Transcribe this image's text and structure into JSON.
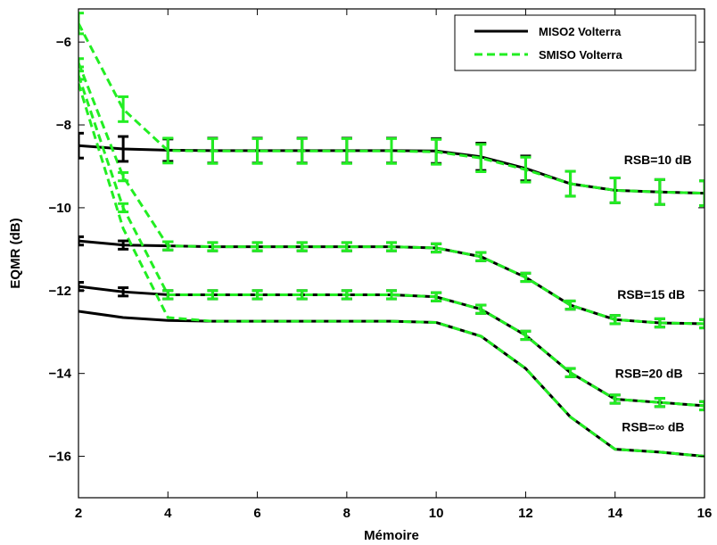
{
  "chart_data": {
    "type": "line",
    "xlabel": "Mémoire",
    "ylabel": "EQMR (dB)",
    "xlim": [
      2,
      16
    ],
    "ylim": [
      -17,
      -5.2
    ],
    "xticks": [
      2,
      4,
      6,
      8,
      10,
      12,
      14,
      16
    ],
    "yticks": [
      -16,
      -14,
      -12,
      -10,
      -8,
      -6
    ],
    "grid": false,
    "legend": {
      "position": "top-right",
      "entries": [
        {
          "label": "MISO2 Volterra",
          "color": "#000000",
          "style": "solid"
        },
        {
          "label": "SMISO Volterra",
          "color": "#22ee22",
          "style": "dashed"
        }
      ]
    },
    "x": [
      2,
      3,
      4,
      5,
      6,
      7,
      8,
      9,
      10,
      11,
      12,
      13,
      14,
      15,
      16
    ],
    "series": [
      {
        "name": "MISO2 Volterra",
        "color": "#000000",
        "style": "solid",
        "curves": [
          {
            "annotation": "RSB=10 dB",
            "y": [
              -8.5,
              -8.58,
              -8.61,
              -8.62,
              -8.62,
              -8.62,
              -8.62,
              -8.62,
              -8.63,
              -8.77,
              -9.05,
              -9.42,
              -9.58,
              -9.62,
              -9.65
            ],
            "err": [
              0.3,
              0.3,
              0.27,
              0.3,
              0.3,
              0.3,
              0.3,
              0.3,
              0.3,
              0.33,
              0.3,
              0.3,
              0.3,
              0.3,
              0.3
            ]
          },
          {
            "annotation": "RSB=15 dB",
            "y": [
              -10.8,
              -10.9,
              -10.92,
              -10.94,
              -10.94,
              -10.94,
              -10.94,
              -10.94,
              -10.97,
              -11.18,
              -11.68,
              -12.35,
              -12.7,
              -12.78,
              -12.8
            ],
            "err": [
              0.1,
              0.1,
              0.1,
              0.1,
              0.1,
              0.1,
              0.1,
              0.1,
              0.1,
              0.1,
              0.1,
              0.1,
              0.1,
              0.1,
              0.1
            ]
          },
          {
            "annotation": "RSB=20 dB",
            "y": [
              -11.9,
              -12.03,
              -12.1,
              -12.1,
              -12.1,
              -12.1,
              -12.1,
              -12.1,
              -12.15,
              -12.45,
              -13.08,
              -13.98,
              -14.62,
              -14.7,
              -14.78
            ],
            "err": [
              0.1,
              0.1,
              0.1,
              0.1,
              0.1,
              0.1,
              0.1,
              0.1,
              0.1,
              0.1,
              0.1,
              0.1,
              0.1,
              0.1,
              0.1
            ]
          },
          {
            "annotation": "RSB=∞ dB",
            "y": [
              -12.5,
              -12.65,
              -12.72,
              -12.74,
              -12.74,
              -12.74,
              -12.74,
              -12.74,
              -12.77,
              -13.1,
              -13.88,
              -15.05,
              -15.83,
              -15.9,
              -16.0
            ],
            "err": null
          }
        ]
      },
      {
        "name": "SMISO Volterra",
        "color": "#22ee22",
        "style": "dashed",
        "curves": [
          {
            "annotation": "RSB=10 dB",
            "y": [
              -5.55,
              -7.62,
              -8.62,
              -8.63,
              -8.63,
              -8.63,
              -8.63,
              -8.63,
              -8.65,
              -8.8,
              -9.08,
              -9.42,
              -9.58,
              -9.62,
              -9.65
            ],
            "err": [
              0.25,
              0.3,
              0.3,
              0.3,
              0.3,
              0.3,
              0.3,
              0.3,
              0.3,
              0.33,
              0.3,
              0.3,
              0.3,
              0.3,
              0.3
            ]
          },
          {
            "annotation": "RSB=15 dB",
            "y": [
              -6.5,
              -9.25,
              -10.92,
              -10.94,
              -10.94,
              -10.94,
              -10.94,
              -10.94,
              -10.97,
              -11.18,
              -11.68,
              -12.35,
              -12.7,
              -12.78,
              -12.8
            ],
            "err": [
              0.1,
              0.1,
              0.1,
              0.1,
              0.1,
              0.1,
              0.1,
              0.1,
              0.1,
              0.1,
              0.1,
              0.1,
              0.1,
              0.1,
              0.1
            ]
          },
          {
            "annotation": "RSB=20 dB",
            "y": [
              -6.8,
              -10.0,
              -12.1,
              -12.1,
              -12.1,
              -12.1,
              -12.1,
              -12.1,
              -12.15,
              -12.45,
              -13.08,
              -13.98,
              -14.62,
              -14.7,
              -14.78
            ],
            "err": [
              0.1,
              0.1,
              0.1,
              0.1,
              0.1,
              0.1,
              0.1,
              0.1,
              0.1,
              0.1,
              0.1,
              0.1,
              0.1,
              0.1,
              0.1
            ]
          },
          {
            "annotation": "RSB=∞ dB",
            "y": [
              -7.0,
              -10.5,
              -12.65,
              -12.74,
              -12.74,
              -12.74,
              -12.74,
              -12.74,
              -12.77,
              -13.1,
              -13.88,
              -15.05,
              -15.83,
              -15.9,
              -16.0
            ],
            "err": null
          }
        ]
      }
    ],
    "annotations": [
      {
        "text": "RSB=10 dB",
        "x": 14.2,
        "y": -8.95
      },
      {
        "text": "RSB=15 dB",
        "x": 14.05,
        "y": -12.2
      },
      {
        "text": "RSB=20 dB",
        "x": 14.0,
        "y": -14.1
      },
      {
        "text": "RSB=∞ dB",
        "x": 14.15,
        "y": -15.4
      }
    ]
  }
}
